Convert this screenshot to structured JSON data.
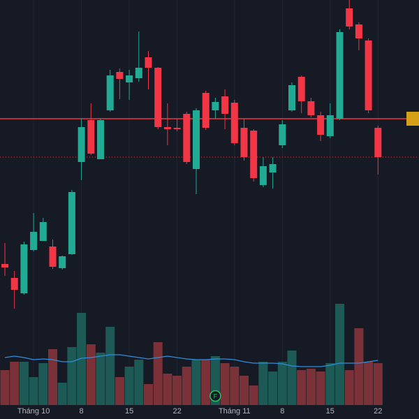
{
  "chart_data": {
    "type": "candlestick",
    "categories": [
      null,
      null,
      null,
      "Tháng 10",
      null,
      null,
      null,
      null,
      "8",
      null,
      null,
      null,
      null,
      "15",
      null,
      null,
      null,
      null,
      "22",
      null,
      null,
      null,
      null,
      null,
      "Tháng 11",
      null,
      null,
      null,
      null,
      "8",
      null,
      null,
      null,
      null,
      "15",
      null,
      null,
      null,
      null,
      "22"
    ],
    "open": [
      222,
      202,
      180,
      242,
      255,
      247,
      216,
      236,
      368,
      428,
      372,
      442,
      497,
      482,
      488,
      518,
      503,
      418,
      417,
      437,
      358,
      467,
      442,
      462,
      453,
      417,
      413,
      335,
      353,
      392,
      442,
      490,
      455,
      435,
      405,
      430,
      588,
      565,
      542,
      417
    ],
    "high": [
      252,
      212,
      254,
      295,
      288,
      257,
      234,
      328,
      430,
      452,
      430,
      500,
      502,
      500,
      555,
      527,
      504,
      452,
      430,
      440,
      445,
      470,
      460,
      472,
      457,
      430,
      415,
      375,
      375,
      428,
      482,
      492,
      460,
      440,
      452,
      558,
      600,
      568,
      545,
      420
    ],
    "low": [
      205,
      158,
      178,
      240,
      255,
      215,
      214,
      235,
      342,
      378,
      372,
      440,
      458,
      457,
      483,
      472,
      415,
      392,
      412,
      365,
      322,
      414,
      430,
      415,
      392,
      370,
      340,
      332,
      330,
      388,
      440,
      438,
      432,
      398,
      402,
      428,
      558,
      528,
      438,
      350
    ],
    "close": [
      217,
      185,
      250,
      268,
      282,
      218,
      233,
      325,
      418,
      380,
      428,
      492,
      487,
      492,
      503,
      503,
      418,
      415,
      415,
      368,
      442,
      417,
      454,
      437,
      395,
      375,
      345,
      362,
      365,
      422,
      478,
      455,
      435,
      407,
      435,
      554,
      562,
      545,
      442,
      375
    ],
    "ylim": [
      0,
      600
    ],
    "volume": [
      50,
      62,
      62,
      40,
      60,
      80,
      32,
      83,
      132,
      87,
      75,
      112,
      40,
      55,
      65,
      30,
      90,
      45,
      42,
      55,
      65,
      65,
      70,
      60,
      55,
      42,
      28,
      62,
      48,
      62,
      78,
      50,
      52,
      48,
      60,
      145,
      50,
      110,
      62,
      60
    ],
    "volume_ma": [
      68,
      70,
      68,
      65,
      66,
      65,
      62,
      62,
      67,
      68,
      70,
      72,
      72,
      70,
      68,
      66,
      68,
      70,
      68,
      66,
      65,
      65,
      66,
      66,
      65,
      62,
      60,
      60,
      60,
      59,
      56,
      55,
      55,
      55,
      57,
      60,
      60,
      60,
      62,
      64
    ],
    "volume_lim": [
      0,
      580
    ],
    "up_color": "#22ab94",
    "down_color": "#f23645",
    "volume_up_color": "#1d5a56",
    "volume_down_color": "#7a3238",
    "ma_color": "#2f8ede",
    "lines": [
      {
        "value": 430,
        "color": "#f23645",
        "style": "solid"
      },
      {
        "value": 375,
        "color": "#f23645",
        "style": "dotted"
      }
    ],
    "annotations": [
      {
        "text": "F",
        "at": 22
      }
    ]
  }
}
